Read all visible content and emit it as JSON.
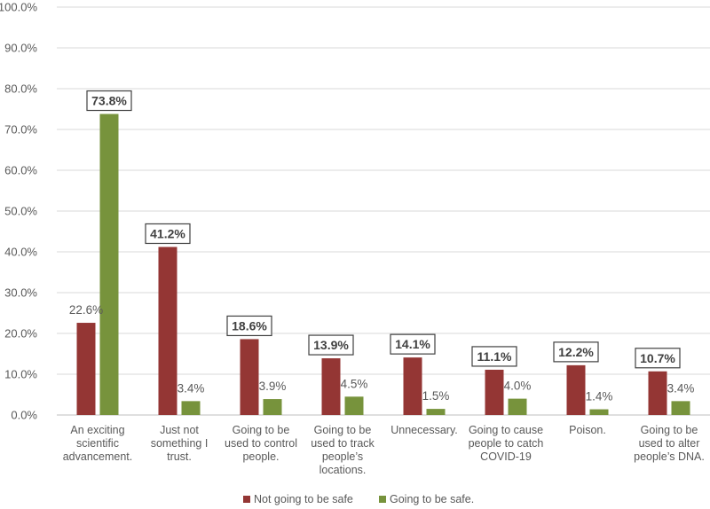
{
  "chart_data": {
    "type": "bar",
    "title": "",
    "xlabel": "",
    "ylabel": "",
    "ylim": [
      0,
      100
    ],
    "ytick_step": 10,
    "ytick_labels": [
      "0.0%",
      "10.0%",
      "20.0%",
      "30.0%",
      "40.0%",
      "50.0%",
      "60.0%",
      "70.0%",
      "80.0%",
      "90.0%",
      "100.0%"
    ],
    "categories": [
      [
        "An exciting",
        "scientific",
        "advancement."
      ],
      [
        "Just not",
        "something I",
        "trust."
      ],
      [
        "Going to be",
        "used to control",
        "people."
      ],
      [
        "Going to be",
        "used to track",
        "people’s",
        "locations."
      ],
      [
        "Unnecessary."
      ],
      [
        "Going to cause",
        "people to catch",
        "COVID-19"
      ],
      [
        "Poison."
      ],
      [
        "Going to be",
        "used to alter",
        "people’s DNA."
      ]
    ],
    "series": [
      {
        "name": "Not going to be safe",
        "color": "#943634",
        "values": [
          22.6,
          41.2,
          18.6,
          13.9,
          14.1,
          11.1,
          12.2,
          10.7
        ],
        "labels": [
          "22.6%",
          "41.2%",
          "18.6%",
          "13.9%",
          "14.1%",
          "11.1%",
          "12.2%",
          "10.7%"
        ],
        "boxed": [
          false,
          true,
          true,
          true,
          true,
          true,
          true,
          true
        ]
      },
      {
        "name": "Going to be safe.",
        "color": "#77933c",
        "values": [
          73.8,
          3.4,
          3.9,
          4.5,
          1.5,
          4.0,
          1.4,
          3.4
        ],
        "labels": [
          "73.8%",
          "3.4%",
          "3.9%",
          "4.5%",
          "1.5%",
          "4.0%",
          "1.4%",
          "3.4%"
        ],
        "boxed": [
          true,
          false,
          false,
          false,
          false,
          false,
          false,
          false
        ]
      }
    ],
    "legend_position": "bottom",
    "grid": true,
    "colors": {
      "grid": "#d9d9d9",
      "axis": "#bfbfbf",
      "label_box": "#404040"
    }
  }
}
